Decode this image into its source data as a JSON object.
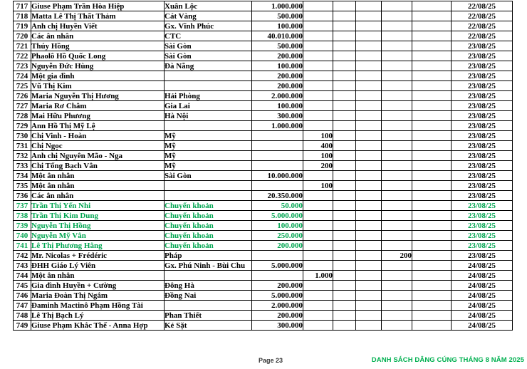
{
  "colors": {
    "row_highlight_green": "#00A550",
    "footer_title_green": "#00B050",
    "table_border": "#000000"
  },
  "footer": {
    "page_label": "Page 23",
    "title": "DANH SÁCH DÂNG CÚNG THÁNG 8 NĂM 2025"
  },
  "table": {
    "rows": [
      {
        "no": "717",
        "name": "Giuse Phạm Trần Hòa Hiệp",
        "location": "Xuân Lộc",
        "amount": "1.000.000",
        "date": "22/08/25",
        "green": false
      },
      {
        "no": "718",
        "name": "Matta Lê Thị Thất Thảm",
        "location": "Cát Vàng",
        "amount": "500.000",
        "date": "22/08/25",
        "green": false
      },
      {
        "no": "719",
        "name": "Anh chị Huyền Viết",
        "location": "Gx. Vĩnh Phúc",
        "amount": "100.000",
        "date": "22/08/25",
        "green": false
      },
      {
        "no": "720",
        "name": "Các ân nhân",
        "location": "CTC",
        "amount": "40.010.000",
        "date": "22/08/25",
        "green": false
      },
      {
        "no": "721",
        "name": "Thúy Hồng",
        "location": "Sài Gòn",
        "amount": "500.000",
        "date": "23/08/25",
        "green": false
      },
      {
        "no": "722",
        "name": "Phaolô Hồ Quốc Long",
        "location": "Sài Gòn",
        "amount": "200.000",
        "date": "23/08/25",
        "green": false
      },
      {
        "no": "723",
        "name": "Nguyễn Đức Hùng",
        "location": "Đà Nẵng",
        "amount": "100.000",
        "date": "23/08/25",
        "green": false
      },
      {
        "no": "724",
        "name": "Một gia đình",
        "location": "",
        "amount": "200.000",
        "date": "23/08/25",
        "green": false
      },
      {
        "no": "725",
        "name": "Vũ Thị Kim",
        "location": "",
        "amount": "200.000",
        "date": "23/08/25",
        "green": false
      },
      {
        "no": "726",
        "name": "Maria Nguyễn Thị Hương",
        "location": "Hải Phòng",
        "amount": "2.000.000",
        "date": "23/08/25",
        "green": false
      },
      {
        "no": "727",
        "name": "Maria Rơ Châm",
        "location": "Gia Lai",
        "amount": "100.000",
        "date": "23/08/25",
        "green": false
      },
      {
        "no": "728",
        "name": "Mai Hữu Phương",
        "location": "Hà Nội",
        "amount": "300.000",
        "date": "23/08/25",
        "green": false
      },
      {
        "no": "729",
        "name": "Ann Hồ Thị Mỹ Lệ",
        "location": "",
        "amount": "1.000.000",
        "date": "23/08/25",
        "green": false
      },
      {
        "no": "730",
        "name": "Chị Vinh - Hoàn",
        "location": "Mỹ",
        "amount": "",
        "col5": "100",
        "date": "23/08/25",
        "green": false
      },
      {
        "no": "731",
        "name": "Chị Ngọc",
        "location": "Mỹ",
        "amount": "",
        "col5": "400",
        "date": "23/08/25",
        "green": false
      },
      {
        "no": "732",
        "name": "Anh chị Nguyên Mão - Nga",
        "location": "Mỹ",
        "amount": "",
        "col5": "100",
        "date": "23/08/25",
        "green": false
      },
      {
        "no": "733",
        "name": "Chị Tống Bạch Vân",
        "location": "Mỹ",
        "amount": "",
        "col5": "200",
        "date": "23/08/25",
        "green": false
      },
      {
        "no": "734",
        "name": "Một ân nhân",
        "location": "Sài Gòn",
        "amount": "10.000.000",
        "date": "23/08/25",
        "green": false
      },
      {
        "no": "735",
        "name": "Một ân nhân",
        "location": "",
        "amount": "",
        "col5": "100",
        "date": "23/08/25",
        "green": false
      },
      {
        "no": "736",
        "name": "Các ân nhân",
        "location": "",
        "amount": "20.350.000",
        "date": "23/08/25",
        "green": false
      },
      {
        "no": "737",
        "name": "Trần Thị Yến Nhi",
        "location": "Chuyển khoản",
        "amount": "50.000",
        "date": "23/08/25",
        "green": true
      },
      {
        "no": "738",
        "name": "Trần Thị Kim Dung",
        "location": "Chuyển khoản",
        "amount": "5.000.000",
        "date": "23/08/25",
        "green": true
      },
      {
        "no": "739",
        "name": "Nguyễn Thị Hồng",
        "location": "Chuyển khoản",
        "amount": "100.000",
        "date": "23/08/25",
        "green": true
      },
      {
        "no": "740",
        "name": "Nguyễn Mỹ Vân",
        "location": "Chuyển khoản",
        "amount": "250.000",
        "date": "23/08/25",
        "green": true
      },
      {
        "no": "741",
        "name": "Lê Thị Phương Hằng",
        "location": "Chuyển khoản",
        "amount": "200.000",
        "date": "23/08/25",
        "green": true
      },
      {
        "no": "742",
        "name": "Mr. Nicolas + Frédéric",
        "location": "Pháp",
        "amount": "",
        "col8": "200",
        "date": "23/08/25",
        "green": false
      },
      {
        "no": "743",
        "name": "ĐHH Giáo Lý Viên",
        "location": "Gx. Phú Ninh - Bùi Chu",
        "amount": "5.000.000",
        "date": "24/08/25",
        "green": false
      },
      {
        "no": "744",
        "name": "Một ân nhân",
        "location": "",
        "amount": "",
        "col5": "1.000",
        "date": "24/08/25",
        "green": false
      },
      {
        "no": "745",
        "name": "Gia đình Huyền + Cường",
        "location": "Đông Hà",
        "amount": "200.000",
        "date": "24/08/25",
        "green": false
      },
      {
        "no": "746",
        "name": "Maria Đoàn Thị Ngắm",
        "location": "Đồng Nai",
        "amount": "5.000.000",
        "date": "24/08/25",
        "green": false
      },
      {
        "no": "747",
        "name": "Đaminh Mactinô Phạm Hồng Tài",
        "location": "",
        "amount": "2.000.000",
        "date": "24/08/25",
        "green": false
      },
      {
        "no": "748",
        "name": "Lê Thị Bạch Lý",
        "location": "Phan Thiết",
        "amount": "200.000",
        "date": "24/08/25",
        "green": false
      },
      {
        "no": "749",
        "name": "Giuse Phạm Khắc Thế - Anna Hợp",
        "location": "Kẻ Sặt",
        "amount": "300.000",
        "date": "24/08/25",
        "green": false
      }
    ]
  }
}
